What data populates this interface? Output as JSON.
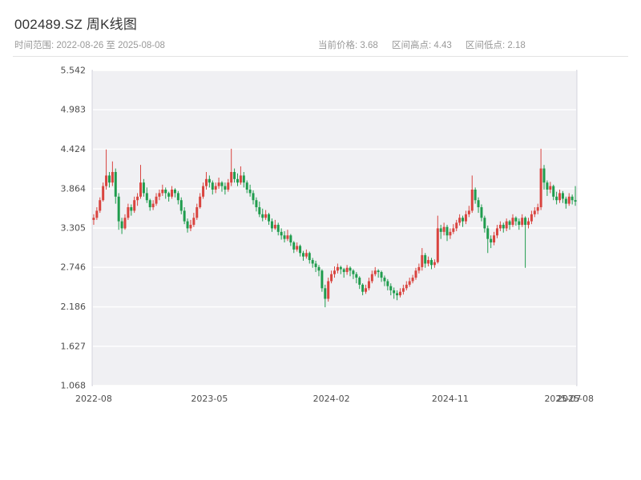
{
  "header": {
    "title": "002489.SZ 周K线图",
    "subtitle_range": "时间范围: 2022-08-26 至 2025-08-08",
    "stats": [
      {
        "label": "当前价格:",
        "value": "3.68"
      },
      {
        "label": "区间高点:",
        "value": "4.43"
      },
      {
        "label": "区间低点:",
        "value": "2.18"
      }
    ]
  },
  "chart_data": {
    "type": "candlestick",
    "title": "002489.SZ 周K线图",
    "symbol": "002489.SZ",
    "period": "weekly",
    "date_start": "2022-08-26",
    "date_end": "2025-08-08",
    "current_price": 3.68,
    "range_high": 4.43,
    "range_low": 2.18,
    "ylim": [
      1.068,
      5.542
    ],
    "y_ticks": [
      {
        "value": 5.542,
        "label": "5.542"
      },
      {
        "value": 4.983,
        "label": "4.983"
      },
      {
        "value": 4.424,
        "label": "4.424"
      },
      {
        "value": 3.864,
        "label": "3.864"
      },
      {
        "value": 3.305,
        "label": "3.305"
      },
      {
        "value": 2.746,
        "label": "2.746"
      },
      {
        "value": 2.186,
        "label": "2.186"
      },
      {
        "value": 1.627,
        "label": "1.627"
      },
      {
        "value": 1.068,
        "label": "1.068"
      }
    ],
    "x_ticks": [
      {
        "index": 0,
        "label": "2022-08"
      },
      {
        "index": 37,
        "label": "2023-05"
      },
      {
        "index": 76,
        "label": "2024-02"
      },
      {
        "index": 114,
        "label": "2024-11"
      },
      {
        "index": 150,
        "label": "2025-07"
      },
      {
        "index": 154,
        "label": "2025-08"
      }
    ],
    "legend": "up = red (price rose), down = green (price fell)",
    "grid": "horizontal",
    "colors": {
      "up": "#d9443f",
      "down": "#1f9c4d",
      "plot_bg": "#f0f0f3",
      "grid": "#ffffff",
      "spine": "#d4d4dc"
    },
    "candles": [
      [
        3.42,
        3.5,
        3.35,
        3.45
      ],
      [
        3.45,
        3.6,
        3.42,
        3.55
      ],
      [
        3.55,
        3.74,
        3.52,
        3.7
      ],
      [
        3.7,
        3.95,
        3.68,
        3.9
      ],
      [
        3.9,
        4.42,
        3.85,
        4.05
      ],
      [
        4.05,
        4.1,
        3.88,
        3.95
      ],
      [
        3.95,
        4.25,
        3.9,
        4.1
      ],
      [
        4.1,
        4.15,
        3.65,
        3.75
      ],
      [
        3.75,
        3.8,
        3.28,
        3.4
      ],
      [
        3.4,
        3.45,
        3.22,
        3.3
      ],
      [
        3.3,
        3.5,
        3.28,
        3.45
      ],
      [
        3.45,
        3.65,
        3.42,
        3.6
      ],
      [
        3.6,
        3.64,
        3.48,
        3.55
      ],
      [
        3.55,
        3.75,
        3.52,
        3.7
      ],
      [
        3.7,
        3.8,
        3.62,
        3.75
      ],
      [
        3.75,
        4.2,
        3.72,
        3.95
      ],
      [
        3.95,
        4.0,
        3.75,
        3.8
      ],
      [
        3.8,
        3.88,
        3.66,
        3.7
      ],
      [
        3.7,
        3.72,
        3.55,
        3.6
      ],
      [
        3.6,
        3.7,
        3.56,
        3.65
      ],
      [
        3.65,
        3.8,
        3.62,
        3.75
      ],
      [
        3.75,
        3.85,
        3.7,
        3.8
      ],
      [
        3.8,
        3.92,
        3.76,
        3.85
      ],
      [
        3.85,
        3.88,
        3.72,
        3.8
      ],
      [
        3.8,
        3.82,
        3.68,
        3.75
      ],
      [
        3.75,
        3.9,
        3.72,
        3.85
      ],
      [
        3.85,
        3.87,
        3.74,
        3.8
      ],
      [
        3.8,
        3.83,
        3.64,
        3.7
      ],
      [
        3.7,
        3.74,
        3.5,
        3.55
      ],
      [
        3.55,
        3.6,
        3.36,
        3.4
      ],
      [
        3.4,
        3.44,
        3.24,
        3.3
      ],
      [
        3.3,
        3.42,
        3.26,
        3.35
      ],
      [
        3.35,
        3.52,
        3.32,
        3.45
      ],
      [
        3.45,
        3.65,
        3.42,
        3.6
      ],
      [
        3.6,
        3.8,
        3.58,
        3.75
      ],
      [
        3.75,
        3.95,
        3.72,
        3.9
      ],
      [
        3.9,
        4.1,
        3.85,
        4.0
      ],
      [
        4.0,
        4.05,
        3.88,
        3.95
      ],
      [
        3.95,
        3.98,
        3.78,
        3.85
      ],
      [
        3.85,
        3.95,
        3.8,
        3.9
      ],
      [
        3.9,
        4.02,
        3.86,
        3.95
      ],
      [
        3.95,
        3.97,
        3.82,
        3.9
      ],
      [
        3.9,
        3.95,
        3.78,
        3.85
      ],
      [
        3.85,
        4.0,
        3.82,
        3.95
      ],
      [
        3.95,
        4.43,
        3.9,
        4.1
      ],
      [
        4.1,
        4.15,
        3.95,
        4.0
      ],
      [
        4.0,
        4.08,
        3.9,
        3.95
      ],
      [
        3.95,
        4.18,
        3.92,
        4.05
      ],
      [
        4.05,
        4.1,
        3.88,
        3.95
      ],
      [
        3.95,
        3.98,
        3.8,
        3.85
      ],
      [
        3.85,
        3.92,
        3.75,
        3.8
      ],
      [
        3.8,
        3.84,
        3.64,
        3.7
      ],
      [
        3.7,
        3.74,
        3.54,
        3.6
      ],
      [
        3.6,
        3.68,
        3.46,
        3.5
      ],
      [
        3.5,
        3.58,
        3.4,
        3.45
      ],
      [
        3.45,
        3.56,
        3.42,
        3.5
      ],
      [
        3.5,
        3.52,
        3.35,
        3.4
      ],
      [
        3.4,
        3.44,
        3.25,
        3.3
      ],
      [
        3.3,
        3.42,
        3.28,
        3.35
      ],
      [
        3.35,
        3.38,
        3.2,
        3.25
      ],
      [
        3.25,
        3.3,
        3.14,
        3.2
      ],
      [
        3.2,
        3.26,
        3.1,
        3.15
      ],
      [
        3.15,
        3.28,
        3.12,
        3.2
      ],
      [
        3.2,
        3.22,
        3.05,
        3.1
      ],
      [
        3.1,
        3.12,
        2.95,
        3.0
      ],
      [
        3.0,
        3.1,
        2.97,
        3.05
      ],
      [
        3.05,
        3.07,
        2.9,
        2.95
      ],
      [
        2.95,
        2.98,
        2.84,
        2.9
      ],
      [
        2.9,
        3.0,
        2.87,
        2.95
      ],
      [
        2.95,
        2.97,
        2.8,
        2.85
      ],
      [
        2.85,
        2.88,
        2.74,
        2.8
      ],
      [
        2.8,
        2.84,
        2.68,
        2.75
      ],
      [
        2.75,
        2.78,
        2.62,
        2.7
      ],
      [
        2.7,
        2.72,
        2.4,
        2.45
      ],
      [
        2.45,
        2.5,
        2.18,
        2.3
      ],
      [
        2.3,
        2.6,
        2.26,
        2.55
      ],
      [
        2.55,
        2.7,
        2.52,
        2.65
      ],
      [
        2.65,
        2.76,
        2.6,
        2.7
      ],
      [
        2.7,
        2.8,
        2.66,
        2.75
      ],
      [
        2.75,
        2.77,
        2.65,
        2.72
      ],
      [
        2.72,
        2.74,
        2.6,
        2.68
      ],
      [
        2.68,
        2.78,
        2.64,
        2.74
      ],
      [
        2.74,
        2.76,
        2.62,
        2.7
      ],
      [
        2.7,
        2.72,
        2.58,
        2.65
      ],
      [
        2.65,
        2.68,
        2.52,
        2.6
      ],
      [
        2.6,
        2.62,
        2.44,
        2.5
      ],
      [
        2.5,
        2.52,
        2.35,
        2.4
      ],
      [
        2.4,
        2.5,
        2.37,
        2.45
      ],
      [
        2.45,
        2.6,
        2.42,
        2.55
      ],
      [
        2.55,
        2.7,
        2.52,
        2.65
      ],
      [
        2.65,
        2.75,
        2.62,
        2.7
      ],
      [
        2.7,
        2.72,
        2.6,
        2.68
      ],
      [
        2.68,
        2.7,
        2.54,
        2.6
      ],
      [
        2.6,
        2.63,
        2.48,
        2.55
      ],
      [
        2.55,
        2.58,
        2.42,
        2.48
      ],
      [
        2.48,
        2.52,
        2.35,
        2.42
      ],
      [
        2.42,
        2.46,
        2.3,
        2.38
      ],
      [
        2.38,
        2.42,
        2.28,
        2.35
      ],
      [
        2.35,
        2.45,
        2.32,
        2.4
      ],
      [
        2.4,
        2.5,
        2.36,
        2.45
      ],
      [
        2.45,
        2.55,
        2.42,
        2.5
      ],
      [
        2.5,
        2.6,
        2.47,
        2.55
      ],
      [
        2.55,
        2.64,
        2.52,
        2.6
      ],
      [
        2.6,
        2.74,
        2.57,
        2.7
      ],
      [
        2.7,
        2.8,
        2.66,
        2.75
      ],
      [
        2.75,
        3.02,
        2.7,
        2.92
      ],
      [
        2.92,
        2.95,
        2.74,
        2.8
      ],
      [
        2.8,
        2.9,
        2.76,
        2.85
      ],
      [
        2.85,
        2.88,
        2.72,
        2.78
      ],
      [
        2.78,
        2.86,
        2.74,
        2.82
      ],
      [
        2.82,
        3.48,
        2.8,
        3.3
      ],
      [
        3.3,
        3.35,
        3.15,
        3.25
      ],
      [
        3.25,
        3.38,
        3.2,
        3.32
      ],
      [
        3.32,
        3.35,
        3.12,
        3.2
      ],
      [
        3.2,
        3.3,
        3.15,
        3.25
      ],
      [
        3.25,
        3.36,
        3.22,
        3.3
      ],
      [
        3.3,
        3.42,
        3.26,
        3.38
      ],
      [
        3.38,
        3.5,
        3.34,
        3.45
      ],
      [
        3.45,
        3.48,
        3.32,
        3.4
      ],
      [
        3.4,
        3.55,
        3.36,
        3.5
      ],
      [
        3.5,
        3.62,
        3.46,
        3.55
      ],
      [
        3.55,
        4.05,
        3.52,
        3.85
      ],
      [
        3.85,
        3.88,
        3.65,
        3.7
      ],
      [
        3.7,
        3.74,
        3.52,
        3.6
      ],
      [
        3.6,
        3.64,
        3.4,
        3.45
      ],
      [
        3.45,
        3.48,
        3.24,
        3.3
      ],
      [
        3.3,
        3.34,
        2.95,
        3.15
      ],
      [
        3.15,
        3.2,
        3.02,
        3.1
      ],
      [
        3.1,
        3.25,
        3.06,
        3.2
      ],
      [
        3.2,
        3.35,
        3.16,
        3.3
      ],
      [
        3.3,
        3.4,
        3.26,
        3.35
      ],
      [
        3.35,
        3.38,
        3.24,
        3.3
      ],
      [
        3.3,
        3.44,
        3.26,
        3.4
      ],
      [
        3.4,
        3.42,
        3.28,
        3.35
      ],
      [
        3.35,
        3.5,
        3.32,
        3.45
      ],
      [
        3.45,
        3.47,
        3.34,
        3.4
      ],
      [
        3.4,
        3.44,
        3.28,
        3.35
      ],
      [
        3.35,
        3.5,
        3.32,
        3.45
      ],
      [
        3.45,
        3.47,
        2.74,
        3.35
      ],
      [
        3.35,
        3.45,
        3.3,
        3.4
      ],
      [
        3.4,
        3.55,
        3.36,
        3.5
      ],
      [
        3.5,
        3.6,
        3.46,
        3.55
      ],
      [
        3.55,
        3.65,
        3.5,
        3.6
      ],
      [
        3.6,
        4.43,
        3.56,
        4.15
      ],
      [
        4.15,
        4.2,
        3.85,
        3.95
      ],
      [
        3.95,
        3.98,
        3.76,
        3.85
      ],
      [
        3.85,
        3.96,
        3.8,
        3.9
      ],
      [
        3.9,
        3.92,
        3.7,
        3.75
      ],
      [
        3.75,
        3.82,
        3.64,
        3.7
      ],
      [
        3.7,
        3.85,
        3.66,
        3.8
      ],
      [
        3.8,
        3.83,
        3.66,
        3.72
      ],
      [
        3.72,
        3.75,
        3.58,
        3.65
      ],
      [
        3.65,
        3.8,
        3.62,
        3.75
      ],
      [
        3.75,
        3.78,
        3.64,
        3.7
      ],
      [
        3.7,
        3.9,
        3.62,
        3.68
      ]
    ]
  }
}
